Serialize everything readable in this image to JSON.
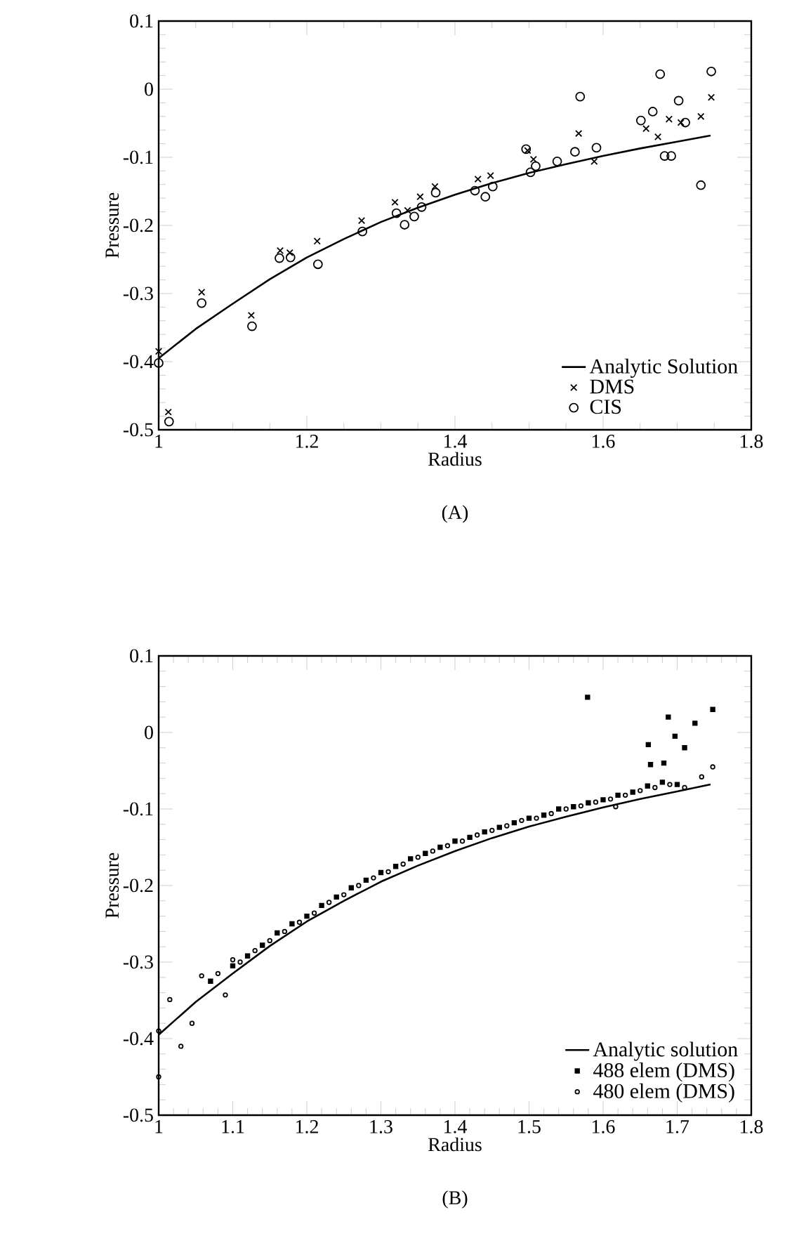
{
  "chart_data": [
    {
      "type": "scatter",
      "xlabel": "Radius",
      "ylabel": "Pressure",
      "annotations": [
        "(A)"
      ],
      "xlim": [
        1,
        1.8
      ],
      "xticks": [
        1,
        1.2,
        1.4,
        1.6,
        1.8
      ],
      "ylim": [
        -0.5,
        0.1
      ],
      "yticks": [
        -0.5,
        -0.4,
        -0.3,
        -0.2,
        -0.1,
        0,
        0.1
      ],
      "legend": "bottom right",
      "grid": false,
      "series": [
        {
          "name": "Analytic Solution",
          "type": "line",
          "color": "#000000",
          "marker": "none",
          "line_style": "solid",
          "x": [
            1.0,
            1.05,
            1.1,
            1.15,
            1.2,
            1.25,
            1.3,
            1.35,
            1.4,
            1.45,
            1.5,
            1.55,
            1.6,
            1.65,
            1.7,
            1.745
          ],
          "values": [
            -0.395,
            -0.352,
            -0.315,
            -0.279,
            -0.247,
            -0.22,
            -0.195,
            -0.174,
            -0.155,
            -0.138,
            -0.123,
            -0.11,
            -0.098,
            -0.087,
            -0.077,
            -0.068
          ]
        },
        {
          "name": "DMS",
          "type": "scatter",
          "color": "#000000",
          "marker": "cross",
          "x": [
            1.0,
            1.013,
            1.058,
            1.125,
            1.164,
            1.177,
            1.214,
            1.274,
            1.319,
            1.336,
            1.353,
            1.373,
            1.431,
            1.448,
            1.498,
            1.506,
            1.567,
            1.588,
            1.658,
            1.674,
            1.689,
            1.705,
            1.732,
            1.746
          ],
          "values": [
            -0.385,
            -0.474,
            -0.298,
            -0.332,
            -0.237,
            -0.24,
            -0.223,
            -0.193,
            -0.166,
            -0.178,
            -0.158,
            -0.143,
            -0.132,
            -0.127,
            -0.09,
            -0.103,
            -0.065,
            -0.106,
            -0.058,
            -0.07,
            -0.044,
            -0.049,
            -0.04,
            -0.012
          ]
        },
        {
          "name": "CIS",
          "type": "scatter",
          "color": "#000000",
          "marker": "circle",
          "x": [
            1.0,
            1.014,
            1.058,
            1.126,
            1.163,
            1.178,
            1.215,
            1.275,
            1.321,
            1.332,
            1.345,
            1.355,
            1.374,
            1.427,
            1.441,
            1.451,
            1.496,
            1.502,
            1.509,
            1.538,
            1.562,
            1.569,
            1.591,
            1.651,
            1.667,
            1.677,
            1.683,
            1.692,
            1.702,
            1.711,
            1.732,
            1.746
          ],
          "values": [
            -0.402,
            -0.488,
            -0.314,
            -0.348,
            -0.248,
            -0.247,
            -0.257,
            -0.209,
            -0.182,
            -0.199,
            -0.187,
            -0.173,
            -0.152,
            -0.149,
            -0.158,
            -0.143,
            -0.088,
            -0.122,
            -0.113,
            -0.106,
            -0.092,
            -0.011,
            -0.086,
            -0.046,
            -0.033,
            0.022,
            -0.098,
            -0.098,
            -0.017,
            -0.049,
            -0.141,
            0.026
          ]
        }
      ]
    },
    {
      "type": "scatter",
      "xlabel": "Radius",
      "ylabel": "Pressure",
      "annotations": [
        "(B)"
      ],
      "xlim": [
        1,
        1.8
      ],
      "xticks": [
        1,
        1.1,
        1.2,
        1.3,
        1.4,
        1.5,
        1.6,
        1.7,
        1.8
      ],
      "ylim": [
        -0.5,
        0.1
      ],
      "yticks": [
        -0.5,
        -0.4,
        -0.3,
        -0.2,
        -0.1,
        0,
        0.1
      ],
      "legend": "bottom right",
      "grid": false,
      "series": [
        {
          "name": "Analytic solution",
          "type": "line",
          "color": "#000000",
          "marker": "none",
          "line_style": "solid",
          "x": [
            1.0,
            1.05,
            1.1,
            1.15,
            1.2,
            1.25,
            1.3,
            1.35,
            1.4,
            1.45,
            1.5,
            1.55,
            1.6,
            1.65,
            1.7,
            1.745
          ],
          "values": [
            -0.395,
            -0.352,
            -0.315,
            -0.279,
            -0.247,
            -0.22,
            -0.195,
            -0.174,
            -0.155,
            -0.138,
            -0.123,
            -0.11,
            -0.098,
            -0.087,
            -0.077,
            -0.068
          ]
        },
        {
          "name": "488 elem (DMS)",
          "type": "scatter",
          "color": "#000000",
          "marker": "square",
          "x": [
            1.07,
            1.1,
            1.12,
            1.14,
            1.16,
            1.18,
            1.2,
            1.22,
            1.24,
            1.26,
            1.28,
            1.3,
            1.32,
            1.34,
            1.36,
            1.38,
            1.4,
            1.42,
            1.44,
            1.46,
            1.48,
            1.5,
            1.52,
            1.54,
            1.56,
            1.58,
            1.6,
            1.62,
            1.64,
            1.66,
            1.68,
            1.7,
            1.579,
            1.688,
            1.697,
            1.661,
            1.724,
            1.71,
            1.748,
            1.664,
            1.682
          ],
          "values": [
            -0.325,
            -0.305,
            -0.292,
            -0.278,
            -0.262,
            -0.25,
            -0.24,
            -0.226,
            -0.215,
            -0.203,
            -0.193,
            -0.183,
            -0.175,
            -0.165,
            -0.158,
            -0.15,
            -0.142,
            -0.137,
            -0.13,
            -0.124,
            -0.118,
            -0.112,
            -0.108,
            -0.1,
            -0.097,
            -0.092,
            -0.088,
            -0.082,
            -0.078,
            -0.07,
            -0.065,
            -0.068,
            0.046,
            0.02,
            -0.005,
            -0.016,
            0.012,
            -0.02,
            0.03,
            -0.042,
            -0.04
          ]
        },
        {
          "name": "480 elem (DMS)",
          "type": "scatter",
          "color": "#000000",
          "marker": "circle",
          "x": [
            1.0,
            1.0,
            1.015,
            1.03,
            1.045,
            1.058,
            1.08,
            1.09,
            1.1,
            1.11,
            1.13,
            1.15,
            1.17,
            1.19,
            1.21,
            1.23,
            1.25,
            1.27,
            1.29,
            1.31,
            1.33,
            1.35,
            1.37,
            1.39,
            1.41,
            1.43,
            1.45,
            1.47,
            1.49,
            1.51,
            1.53,
            1.55,
            1.57,
            1.59,
            1.61,
            1.617,
            1.63,
            1.65,
            1.67,
            1.69,
            1.71,
            1.733,
            1.748
          ],
          "values": [
            -0.39,
            -0.45,
            -0.349,
            -0.41,
            -0.38,
            -0.318,
            -0.315,
            -0.343,
            -0.297,
            -0.3,
            -0.285,
            -0.272,
            -0.26,
            -0.248,
            -0.236,
            -0.222,
            -0.212,
            -0.2,
            -0.19,
            -0.182,
            -0.172,
            -0.163,
            -0.155,
            -0.148,
            -0.142,
            -0.134,
            -0.128,
            -0.122,
            -0.115,
            -0.112,
            -0.106,
            -0.1,
            -0.096,
            -0.091,
            -0.087,
            -0.097,
            -0.082,
            -0.076,
            -0.072,
            -0.068,
            -0.072,
            -0.058,
            -0.045
          ]
        }
      ]
    }
  ]
}
